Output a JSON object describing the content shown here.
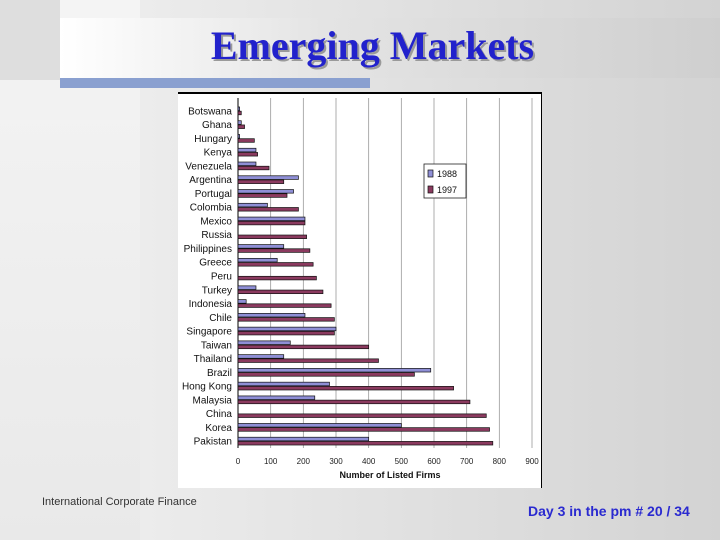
{
  "slide": {
    "title": "Emerging  Markets",
    "footer_left": "International Corporate Finance",
    "footer_right": "Day 3 in the pm # 20 / 34"
  },
  "colors": {
    "title": "#2222cc",
    "series_1988": "#8f8fd6",
    "series_1997": "#8b3a5f"
  },
  "chart_data": {
    "type": "bar",
    "orientation": "horizontal",
    "title": "",
    "xlabel": "Number of Listed Firms",
    "ylabel": "",
    "xlim": [
      0,
      900
    ],
    "xticks": [
      "0",
      "100",
      "200",
      "300",
      "400",
      "500",
      "600",
      "700",
      "800",
      "900"
    ],
    "grid": "vertical",
    "legend_position": "top-right",
    "categories": [
      "Botswana",
      "Ghana",
      "Hungary",
      "Kenya",
      "Venezuela",
      "Argentina",
      "Portugal",
      "Colombia",
      "Mexico",
      "Russia",
      "Philippines",
      "Greece",
      "Peru",
      "Turkey",
      "Indonesia",
      "Chile",
      "Singapore",
      "Taiwan",
      "Thailand",
      "Brazil",
      "Hong Kong",
      "Malaysia",
      "China",
      "Korea",
      "Pakistan"
    ],
    "series": [
      {
        "name": "1988",
        "values": [
          5,
          10,
          5,
          55,
          55,
          185,
          170,
          90,
          205,
          0,
          140,
          120,
          0,
          55,
          25,
          205,
          300,
          160,
          140,
          590,
          280,
          235,
          0,
          500,
          400
        ]
      },
      {
        "name": "1997",
        "values": [
          10,
          20,
          50,
          60,
          95,
          140,
          150,
          185,
          205,
          210,
          220,
          230,
          240,
          260,
          285,
          295,
          295,
          400,
          430,
          540,
          660,
          710,
          760,
          770,
          780
        ]
      }
    ]
  }
}
